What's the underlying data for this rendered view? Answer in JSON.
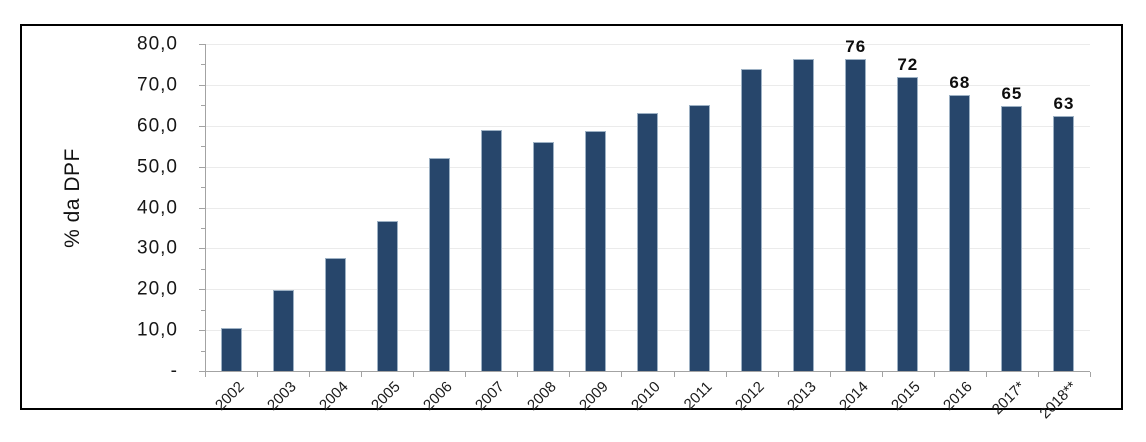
{
  "chart_data": {
    "type": "bar",
    "title": "",
    "xlabel": "",
    "ylabel": "% da DPF",
    "ylim": [
      0,
      80
    ],
    "y_tick_interval": 10,
    "grid": true,
    "legend": "none",
    "categories": [
      "2002",
      "2003",
      "2004",
      "2005",
      "2006",
      "2007",
      "2008",
      "2009",
      "2010",
      "2011",
      "2012",
      "2013",
      "2014",
      "2015",
      "2016",
      "2017*",
      "2018**"
    ],
    "values": [
      10.5,
      19.8,
      27.7,
      36.6,
      52.1,
      58.9,
      56.1,
      58.6,
      63.0,
      65.1,
      73.8,
      76.3,
      76.4,
      72.0,
      67.5,
      64.8,
      62.5
    ],
    "bar_labels": [
      "",
      "",
      "",
      "",
      "",
      "",
      "",
      "",
      "",
      "",
      "",
      "",
      "76",
      "72",
      "68",
      "65",
      "63"
    ],
    "y_ticks": [
      {
        "label": "80,0",
        "value": 80
      },
      {
        "label": "70,0",
        "value": 70
      },
      {
        "label": "60,0",
        "value": 60
      },
      {
        "label": "50,0",
        "value": 50
      },
      {
        "label": "40,0",
        "value": 40
      },
      {
        "label": "30,0",
        "value": 30
      },
      {
        "label": "20,0",
        "value": 20
      },
      {
        "label": "10,0",
        "value": 10
      },
      {
        "label": "-",
        "value": 0
      }
    ],
    "colors": {
      "bar": "#27466b",
      "bar_edge": "#9db1c4",
      "grid": "#ebebeb",
      "axis": "#a3a3a3",
      "frame_border": "#000000",
      "text": "#161616"
    }
  }
}
